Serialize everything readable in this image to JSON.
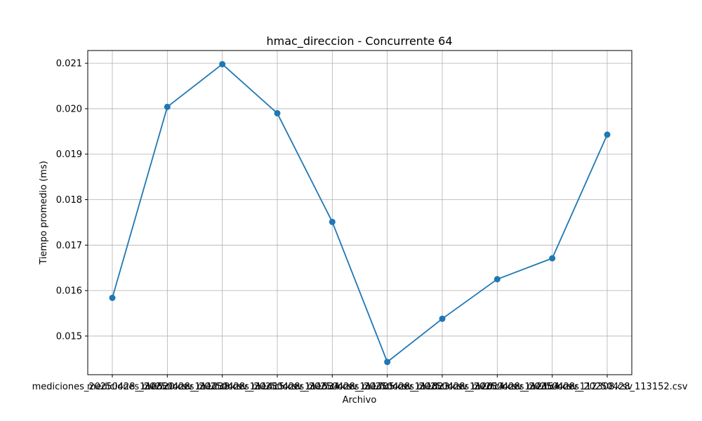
{
  "chart_data": {
    "type": "line",
    "title": "hmac_direccion - Concurrente 64",
    "xlabel": "Archivo",
    "ylabel": "Tiempo promedio (ms)",
    "categories": [
      "mediciones_20250428_110520.csv",
      "mediciones_20250428_111238.csv",
      "mediciones_20250428_111415.csv",
      "mediciones_20250428_111534.csv",
      "mediciones_20250428_111705.csv",
      "mediciones_20250428_111823.csv",
      "mediciones_20250428_112014.csv",
      "mediciones_20250428_112154.csv",
      "mediciones_20250428_112308.csv",
      "mediciones_20250428_113152.csv"
    ],
    "series": [
      {
        "values": [
          0.01584,
          0.02004,
          0.02098,
          0.0199,
          0.01751,
          0.01443,
          0.01538,
          0.01625,
          0.01671,
          0.01943
        ],
        "color": "#1f77b4"
      }
    ],
    "yticks": [
      "0.015",
      "0.016",
      "0.017",
      "0.018",
      "0.019",
      "0.020",
      "0.021"
    ],
    "ylim": [
      0.01415,
      0.02128
    ],
    "grid": true
  }
}
